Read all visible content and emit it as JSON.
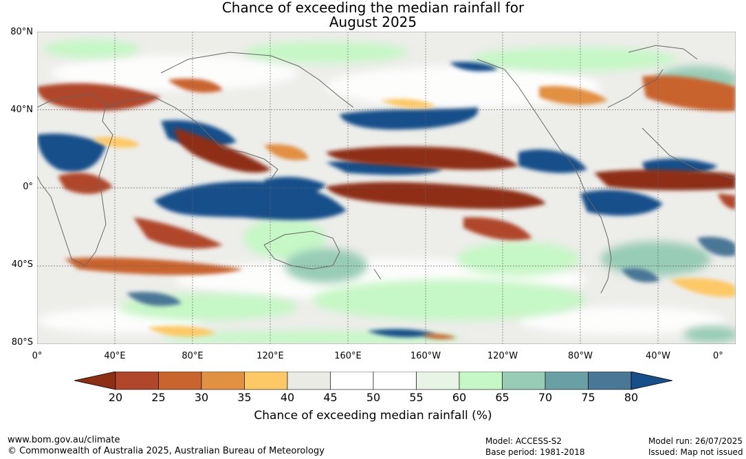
{
  "title": {
    "line1": "Chance of exceeding the median rainfall for",
    "line2": "August 2025"
  },
  "axes": {
    "lat_labels": [
      "80°N",
      "40°N",
      "0°",
      "40°S",
      "80°S"
    ],
    "lon_labels": [
      "0°",
      "40°E",
      "80°E",
      "120°E",
      "160°E",
      "160°W",
      "120°W",
      "80°W",
      "40°W",
      "0°"
    ]
  },
  "legend": {
    "ticks": [
      "20",
      "25",
      "30",
      "35",
      "40",
      "45",
      "50",
      "55",
      "60",
      "65",
      "70",
      "75",
      "80"
    ],
    "colors": [
      "#8e2f14",
      "#b0462b",
      "#c9642f",
      "#e29042",
      "#fdc966",
      "#ebebe6",
      "#ffffff",
      "#ffffff",
      "#e8f5e6",
      "#c6f7c6",
      "#98ccb6",
      "#6a9fa6",
      "#4b7796",
      "#164f8a"
    ],
    "label": "Chance of exceeding median rainfall (%)"
  },
  "footer": {
    "url": "www.bom.gov.au/climate",
    "copyright": "© Commonwealth of Australia 2025, Australian Bureau of Meteorology",
    "model": "Model: ACCESS-S2",
    "base_period": "Base period: 1981-2018",
    "model_run": "Model run: 26/07/2025",
    "issued": "Issued: Map not issued"
  }
}
